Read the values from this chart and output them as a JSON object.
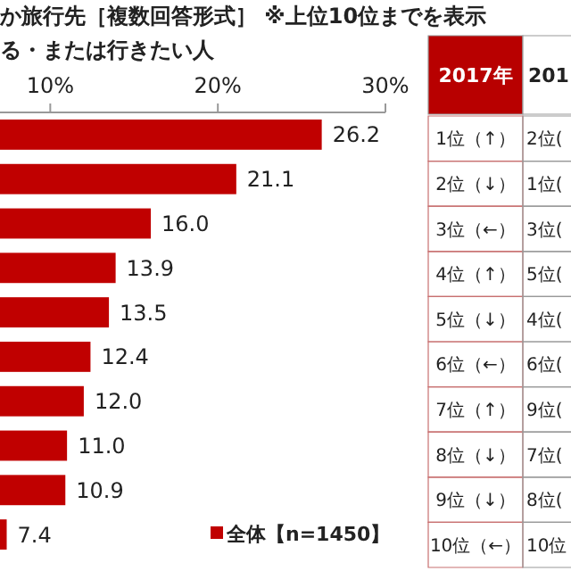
{
  "chart_data": {
    "type": "bar",
    "orientation": "horizontal",
    "title": "か旅行先［複数回答形式］ ※上位10位までを表示",
    "subtitle": "る・または行きたい人",
    "categories": [
      null,
      null,
      null,
      null,
      null,
      null,
      null,
      null,
      null,
      null
    ],
    "series": [
      {
        "name": "全体【n=1450】",
        "color": "#c00000",
        "values": [
          26.2,
          21.1,
          16.0,
          13.9,
          13.5,
          12.4,
          12.0,
          11.0,
          10.9,
          7.4
        ],
        "value_labels": [
          "26.2",
          "21.1",
          "16.0",
          "13.9",
          "13.5",
          "12.4",
          "12.0",
          "11.0",
          "10.9",
          "7.4"
        ]
      }
    ],
    "xlim": [
      7,
      30
    ],
    "xticks": [
      {
        "value": 10,
        "label": "10%"
      },
      {
        "value": 20,
        "label": "20%"
      },
      {
        "value": 30,
        "label": "30%"
      }
    ],
    "tick_labels": "x",
    "legend": "bottom right",
    "grid": false,
    "annotations": [
      "2017年",
      "1位（↑）",
      "2位（↓）",
      "3位（←）",
      "4位（↑）",
      "5位（↓）",
      "6位（←）",
      "7位（↑）",
      "8位（↓）",
      "9位（↓）",
      "10位（←）",
      "201",
      "2位(",
      "1位(",
      "3位(",
      "5位(",
      "4位(",
      "6位(",
      "9位(",
      "7位(",
      "8位(",
      "10位"
    ]
  }
}
